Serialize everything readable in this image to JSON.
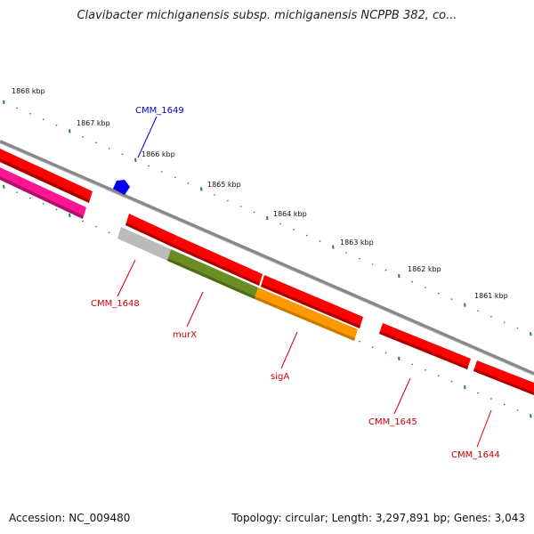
{
  "title": "Clavibacter michiganensis subsp. michiganensis NCPPB 382, co...",
  "footer": {
    "accession": "Accession: NC_009480",
    "topology": "Topology: circular; Length: 3,297,891 bp; Genes: 3,043"
  },
  "colors": {
    "red": "#ff0000",
    "magenta": "#ff1493",
    "grey_gene": "#bbbbbb",
    "olive": "#6b8e23",
    "orange": "#ff9900",
    "blue": "#0000ee",
    "backbone": "#888888",
    "ticks": "#228b22",
    "label_red": "#cc0000",
    "label_blue": "#0000cc"
  },
  "kbp_labels": [
    "1868 kbp",
    "1867 kbp",
    "1866 kbp",
    "1865 kbp",
    "1864 kbp",
    "1863 kbp",
    "1862 kbp",
    "1861 kbp"
  ],
  "genes": [
    {
      "name": "CMM_1649",
      "color": "#0000ee"
    },
    {
      "name": "CMM_1648",
      "color": "#cc0000"
    },
    {
      "name": "murX",
      "color": "#cc0000"
    },
    {
      "name": "sigA",
      "color": "#cc0000"
    },
    {
      "name": "CMM_1645",
      "color": "#cc0000"
    },
    {
      "name": "CMM_1644",
      "color": "#cc0000"
    }
  ]
}
